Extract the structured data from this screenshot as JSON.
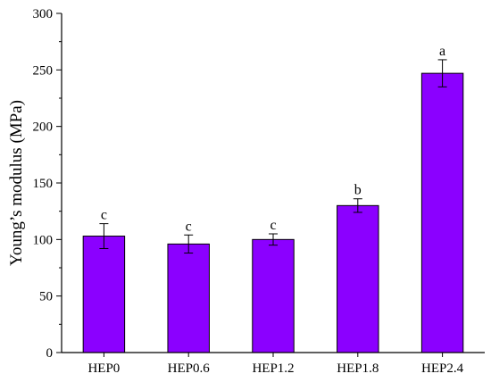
{
  "chart_data": {
    "type": "bar",
    "title": "",
    "xlabel": "",
    "ylabel": "Young’s modulus (MPa)",
    "ylim": [
      0,
      300
    ],
    "yticks": [
      0,
      50,
      100,
      150,
      200,
      250,
      300
    ],
    "categories": [
      "HEP0",
      "HEP0.6",
      "HEP1.2",
      "HEP1.8",
      "HEP2.4"
    ],
    "values": [
      103,
      96,
      100,
      130,
      247
    ],
    "errors": [
      11,
      8,
      5,
      6,
      12
    ],
    "significance_labels": [
      "c",
      "c",
      "c",
      "b",
      "a"
    ],
    "legend": false,
    "grid": false,
    "bar_color": "#8B00FF",
    "bar_edge_color": "#000000"
  }
}
